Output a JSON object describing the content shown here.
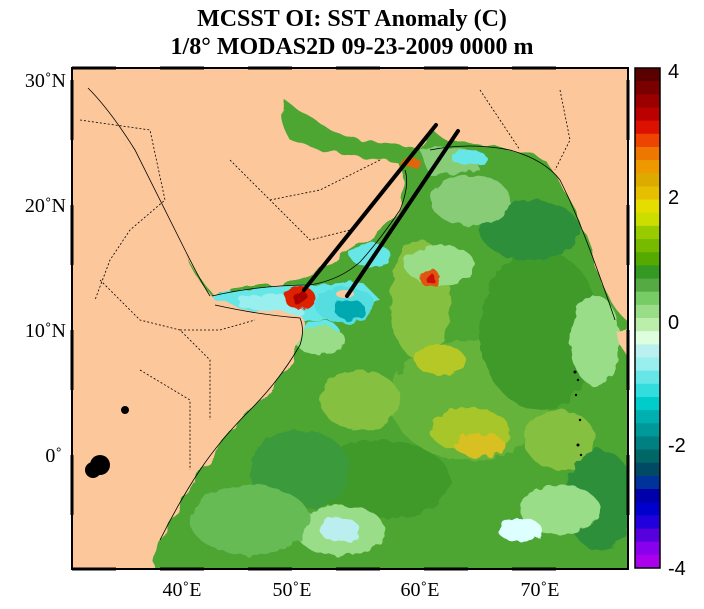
{
  "title_line1": "MCSST OI:  SST Anomaly (C)",
  "title_line2": "1/8° MODAS2D 09-23-2009 0000 m",
  "lat_labels": [
    "30˚N",
    "20˚N",
    "10˚N",
    "0˚"
  ],
  "lon_labels": [
    "40˚E",
    "50˚E",
    "60˚E",
    "70˚E"
  ],
  "colorbar": {
    "labels": [
      "4",
      "2",
      "0",
      "-2",
      "-4"
    ],
    "min": -4,
    "max": 4,
    "colors_top_to_bottom": [
      "#5a0000",
      "#7a0000",
      "#9a0000",
      "#bb0000",
      "#dd1100",
      "#ee4400",
      "#ee7700",
      "#ee9900",
      "#ddaa00",
      "#e6c000",
      "#e6dd00",
      "#ccdd00",
      "#99cc00",
      "#77bb00",
      "#55aa00",
      "#339922",
      "#55aa44",
      "#77cc66",
      "#99dd88",
      "#bbeeaa",
      "#ddffdd",
      "#bbf0f0",
      "#99eeee",
      "#66e6e6",
      "#33dddd",
      "#00cccc",
      "#00b0b0",
      "#009999",
      "#008080",
      "#006666",
      "#004a66",
      "#003399",
      "#0000aa",
      "#0000cc",
      "#2200dd",
      "#5500dd",
      "#8800ee",
      "#aa00ee"
    ]
  },
  "colors": {
    "land": "#fcc79b",
    "ocean_base": "#4da532",
    "warm_anomaly": "#d81a10",
    "cold_anomaly": "#55dde0",
    "transect": "#000000"
  }
}
